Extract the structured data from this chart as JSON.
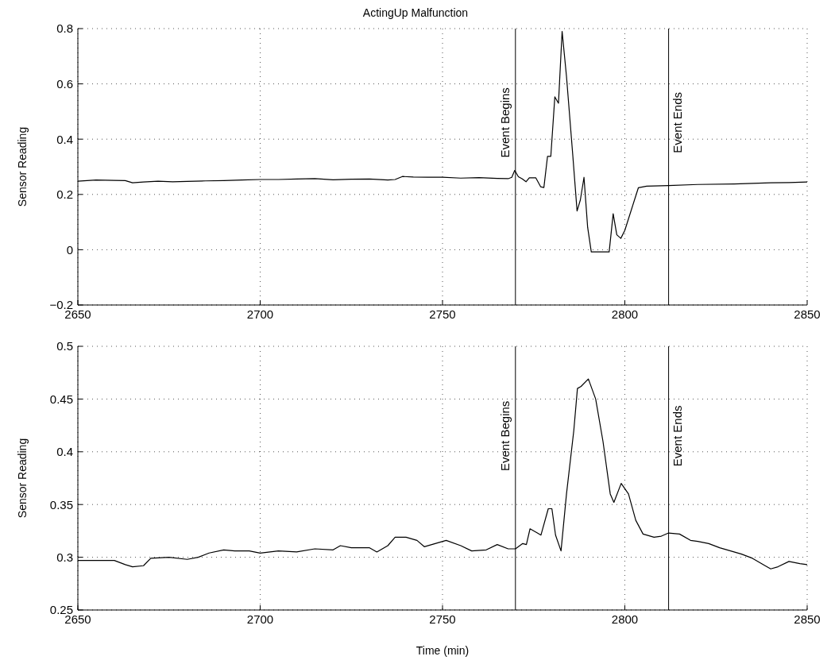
{
  "chart_data": [
    {
      "type": "line",
      "title": "ActingUp Malfunction",
      "ylabel": "Sensor Reading",
      "xlim": [
        2650,
        2850
      ],
      "xticks": [
        2650,
        2700,
        2750,
        2800,
        2850
      ],
      "ylim": [
        -0.2,
        0.8
      ],
      "yticks": [
        -0.2,
        0,
        0.2,
        0.4,
        0.6,
        0.8
      ],
      "grid": true,
      "marker": "none",
      "line_style": "solid",
      "x": [
        2650,
        2655,
        2660,
        2663,
        2665,
        2668,
        2672,
        2676,
        2680,
        2685,
        2690,
        2695,
        2700,
        2705,
        2710,
        2715,
        2720,
        2725,
        2730,
        2735,
        2737,
        2739,
        2742,
        2746,
        2750,
        2755,
        2760,
        2765,
        2768,
        2769,
        2769.8,
        2770.8,
        2771.8,
        2772.9,
        2773.8,
        2775.6,
        2776.9,
        2777.8,
        2778.8,
        2779.7,
        2780.8,
        2781.8,
        2782.8,
        2784,
        2785.7,
        2786.9,
        2787.8,
        2788.8,
        2789.8,
        2790.8,
        2795.7,
        2796.8,
        2797.8,
        2798.9,
        2800,
        2803.7,
        2806,
        2812,
        2820,
        2830,
        2840,
        2845,
        2850
      ],
      "series": [
        {
          "color": "#000000",
          "values": [
            0.248,
            0.252,
            0.251,
            0.25,
            0.242,
            0.245,
            0.248,
            0.246,
            0.247,
            0.249,
            0.25,
            0.252,
            0.254,
            0.254,
            0.256,
            0.257,
            0.253,
            0.255,
            0.256,
            0.252,
            0.254,
            0.265,
            0.263,
            0.262,
            0.262,
            0.259,
            0.261,
            0.258,
            0.257,
            0.262,
            0.287,
            0.264,
            0.257,
            0.246,
            0.26,
            0.26,
            0.228,
            0.225,
            0.338,
            0.338,
            0.553,
            0.53,
            0.79,
            0.627,
            0.346,
            0.14,
            0.18,
            0.262,
            0.081,
            -0.008,
            -0.008,
            0.13,
            0.054,
            0.041,
            0.07,
            0.224,
            0.23,
            0.232,
            0.236,
            0.238,
            0.242,
            0.243,
            0.245
          ]
        }
      ],
      "ref_lines": [
        {
          "axis": "x",
          "value": 2770,
          "label": "Event Begins",
          "color": "#000000"
        },
        {
          "axis": "x",
          "value": 2812,
          "label": "Event Ends",
          "color": "#000000"
        }
      ]
    },
    {
      "type": "line",
      "xlabel": "Time (min)",
      "ylabel": "Sensor Reading",
      "xlim": [
        2650,
        2850
      ],
      "xticks": [
        2650,
        2700,
        2750,
        2800,
        2850
      ],
      "ylim": [
        0.25,
        0.5
      ],
      "yticks": [
        0.25,
        0.3,
        0.35,
        0.4,
        0.45,
        0.5
      ],
      "grid": true,
      "marker": "none",
      "line_style": "solid",
      "x": [
        2650,
        2655,
        2660,
        2663,
        2665,
        2668,
        2670,
        2675,
        2680,
        2683,
        2686,
        2690,
        2693,
        2697,
        2700,
        2705,
        2710,
        2715,
        2720,
        2722,
        2725,
        2730,
        2732,
        2735,
        2737,
        2740,
        2743,
        2745,
        2748,
        2751,
        2755,
        2758,
        2762,
        2765,
        2768,
        2770,
        2772,
        2773,
        2774,
        2776,
        2777,
        2779,
        2780,
        2781,
        2782.5,
        2784,
        2786,
        2787,
        2788,
        2790,
        2792,
        2794,
        2796,
        2797,
        2799,
        2801,
        2803,
        2805,
        2808,
        2810,
        2812,
        2815,
        2818,
        2820,
        2823,
        2826,
        2829,
        2832,
        2835,
        2838,
        2840,
        2842,
        2845,
        2848,
        2850
      ],
      "series": [
        {
          "color": "#000000",
          "values": [
            0.297,
            0.297,
            0.297,
            0.293,
            0.291,
            0.292,
            0.299,
            0.3,
            0.298,
            0.3,
            0.304,
            0.307,
            0.306,
            0.306,
            0.304,
            0.306,
            0.305,
            0.308,
            0.307,
            0.311,
            0.309,
            0.309,
            0.305,
            0.311,
            0.319,
            0.319,
            0.316,
            0.31,
            0.313,
            0.316,
            0.311,
            0.306,
            0.307,
            0.312,
            0.308,
            0.308,
            0.313,
            0.312,
            0.327,
            0.323,
            0.321,
            0.346,
            0.346,
            0.321,
            0.306,
            0.36,
            0.42,
            0.46,
            0.462,
            0.469,
            0.45,
            0.41,
            0.36,
            0.352,
            0.37,
            0.36,
            0.335,
            0.322,
            0.319,
            0.32,
            0.323,
            0.322,
            0.316,
            0.315,
            0.313,
            0.309,
            0.306,
            0.303,
            0.299,
            0.293,
            0.289,
            0.291,
            0.296,
            0.294,
            0.293
          ]
        }
      ],
      "ref_lines": [
        {
          "axis": "x",
          "value": 2770,
          "label": "Event Begins",
          "color": "#000000"
        },
        {
          "axis": "x",
          "value": 2812,
          "label": "Event Ends",
          "color": "#000000"
        }
      ]
    }
  ]
}
